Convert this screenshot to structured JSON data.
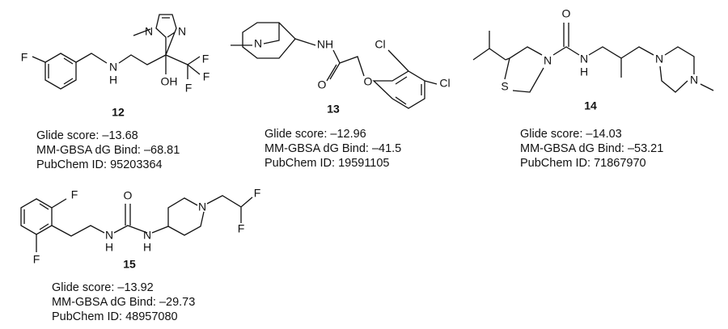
{
  "compounds": [
    {
      "number": "12",
      "atoms": [
        "F",
        "N",
        "H",
        "N",
        "N",
        "OH",
        "F",
        "F",
        "F"
      ],
      "glide": "Glide score: –13.68",
      "mmgbsa": "MM-GBSA dG Bind: –68.81",
      "pubchem": "PubChem ID: 95203364"
    },
    {
      "number": "13",
      "atoms": [
        "N",
        "NH",
        "O",
        "O",
        "Cl",
        "Cl"
      ],
      "glide": "Glide score: –12.96",
      "mmgbsa": "MM-GBSA dG Bind: –41.5",
      "pubchem": "PubChem ID: 19591105"
    },
    {
      "number": "14",
      "atoms": [
        "O",
        "N",
        "N",
        "H",
        "S",
        "N",
        "N"
      ],
      "glide": "Glide score: –14.03",
      "mmgbsa": "MM-GBSA dG Bind: –53.21",
      "pubchem": "PubChem ID: 71867970"
    },
    {
      "number": "15",
      "atoms": [
        "F",
        "F",
        "O",
        "N",
        "H",
        "N",
        "H",
        "N",
        "F",
        "F"
      ],
      "glide": "Glide score: –13.92",
      "mmgbsa": "MM-GBSA dG Bind: –29.73",
      "pubchem": "PubChem ID: 48957080"
    }
  ]
}
